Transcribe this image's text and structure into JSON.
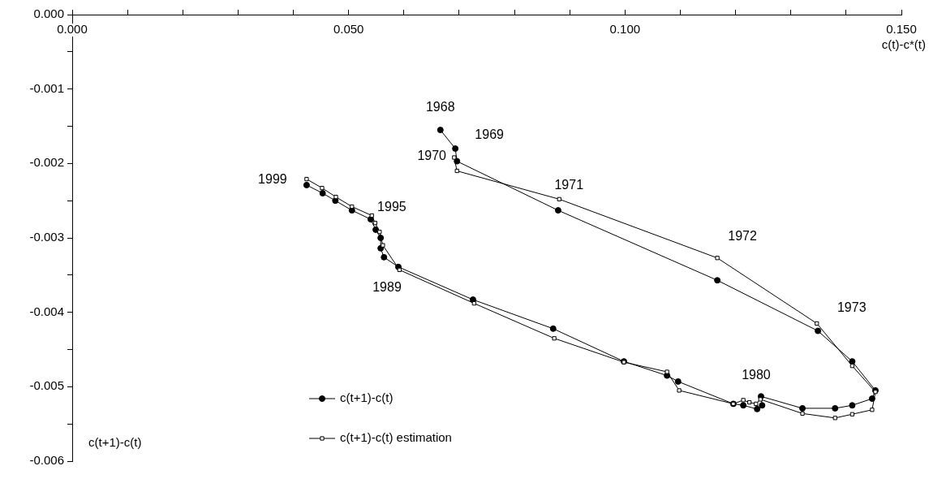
{
  "chart_data": {
    "type": "line",
    "xlabel": "c(t)-c*(t)",
    "ylabel": "c(t+1)-c(t)",
    "xlim": [
      0,
      0.15
    ],
    "ylim": [
      -0.006,
      0
    ],
    "xticks": [
      {
        "value": 0,
        "label": "0.000"
      },
      {
        "value": 0.01,
        "label": null
      },
      {
        "value": 0.02,
        "label": null
      },
      {
        "value": 0.03,
        "label": null
      },
      {
        "value": 0.04,
        "label": null
      },
      {
        "value": 0.05,
        "label": "0.050"
      },
      {
        "value": 0.06,
        "label": null
      },
      {
        "value": 0.07,
        "label": null
      },
      {
        "value": 0.08,
        "label": null
      },
      {
        "value": 0.09,
        "label": null
      },
      {
        "value": 0.1,
        "label": "0.100"
      },
      {
        "value": 0.11,
        "label": null
      },
      {
        "value": 0.12,
        "label": null
      },
      {
        "value": 0.13,
        "label": null
      },
      {
        "value": 0.14,
        "label": null
      },
      {
        "value": 0.15,
        "label": "0.150"
      }
    ],
    "yticks": [
      {
        "value": 0,
        "label": "0.000"
      },
      {
        "value": -0.0005,
        "label": null
      },
      {
        "value": -0.001,
        "label": "-0.001"
      },
      {
        "value": -0.0015,
        "label": null
      },
      {
        "value": -0.002,
        "label": "-0.002"
      },
      {
        "value": -0.0025,
        "label": null
      },
      {
        "value": -0.003,
        "label": "-0.003"
      },
      {
        "value": -0.0035,
        "label": null
      },
      {
        "value": -0.004,
        "label": "-0.004"
      },
      {
        "value": -0.0045,
        "label": null
      },
      {
        "value": -0.005,
        "label": "-0.005"
      },
      {
        "value": -0.0055,
        "label": null
      },
      {
        "value": -0.006,
        "label": "-0.006"
      }
    ],
    "grid": false,
    "legend": "bottom left",
    "line_style": "solid",
    "series": [
      {
        "name": "c(t+1)-c(t)",
        "color": "#000000",
        "marker": "circle",
        "x": [
          0.0666,
          0.0693,
          0.0696,
          0.0879,
          0.1167,
          0.1349,
          0.1411,
          0.1453,
          0.1447,
          0.1411,
          0.138,
          0.1321,
          0.1246,
          0.1248,
          0.1239,
          0.1214,
          0.1196,
          0.1096,
          0.1076,
          0.0998,
          0.087,
          0.0725,
          0.059,
          0.0564,
          0.0558,
          0.0558,
          0.0549,
          0.054,
          0.0506,
          0.0476,
          0.0453,
          0.0424
        ],
        "values": [
          -0.00155,
          -0.0018,
          -0.00197,
          -0.00263,
          -0.00357,
          -0.00425,
          -0.00466,
          -0.00505,
          -0.00516,
          -0.00525,
          -0.00529,
          -0.00529,
          -0.00513,
          -0.00525,
          -0.0053,
          -0.00525,
          -0.00523,
          -0.00493,
          -0.00485,
          -0.00466,
          -0.00422,
          -0.00383,
          -0.00339,
          -0.00326,
          -0.00314,
          -0.003,
          -0.00289,
          -0.00275,
          -0.00263,
          -0.0025,
          -0.0024,
          -0.00229
        ]
      },
      {
        "name": "c(t+1)-c(t) estimation",
        "color": "#000000",
        "marker": "square",
        "x": [
          0.0691,
          0.0696,
          0.0881,
          0.1167,
          0.1347,
          0.1411,
          0.1453,
          0.1447,
          0.1411,
          0.138,
          0.1321,
          0.1245,
          0.1237,
          0.1225,
          0.1214,
          0.1196,
          0.1098,
          0.1076,
          0.0998,
          0.0872,
          0.0727,
          0.0592,
          0.0562,
          0.0556,
          0.0548,
          0.0542,
          0.0506,
          0.0477,
          0.0452,
          0.0424
        ],
        "values": [
          -0.00192,
          -0.0021,
          -0.00248,
          -0.00327,
          -0.00415,
          -0.00472,
          -0.00507,
          -0.00531,
          -0.00537,
          -0.00542,
          -0.00536,
          -0.00517,
          -0.00523,
          -0.00521,
          -0.00518,
          -0.00523,
          -0.00505,
          -0.0048,
          -0.00467,
          -0.00435,
          -0.00388,
          -0.00343,
          -0.0031,
          -0.00292,
          -0.0028,
          -0.0027,
          -0.00258,
          -0.00245,
          -0.00233,
          -0.00221
        ]
      }
    ],
    "annotations": [
      {
        "text": "1968",
        "x": 0.0666,
        "y": -0.00155
      },
      {
        "text": "1969",
        "x": 0.0693,
        "y": -0.0018
      },
      {
        "text": "1970",
        "x": 0.0696,
        "y": -0.00197
      },
      {
        "text": "1971",
        "x": 0.0881,
        "y": -0.00248
      },
      {
        "text": "1972",
        "x": 0.1167,
        "y": -0.00327
      },
      {
        "text": "1973",
        "x": 0.1347,
        "y": -0.00415
      },
      {
        "text": "1980",
        "x": 0.1246,
        "y": -0.00513
      },
      {
        "text": "1989",
        "x": 0.059,
        "y": -0.00339
      },
      {
        "text": "1995",
        "x": 0.054,
        "y": -0.00275
      },
      {
        "text": "1999",
        "x": 0.0424,
        "y": -0.00229
      }
    ]
  }
}
